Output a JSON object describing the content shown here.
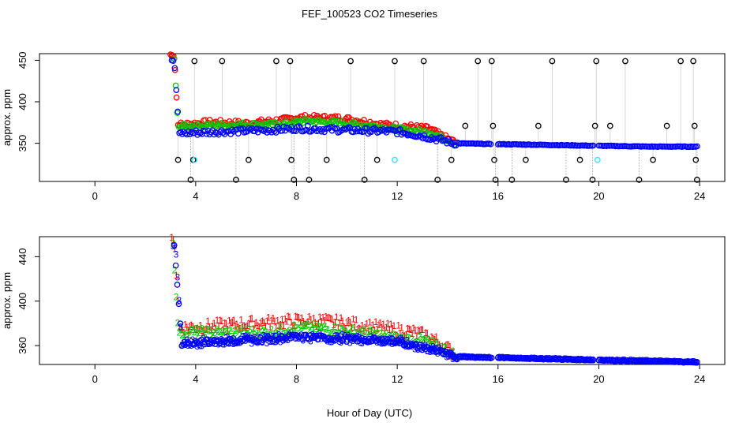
{
  "title": "FEF_100523  CO2 Timeseries",
  "xlabel": "Hour of Day (UTC)",
  "colors": {
    "black": "#000000",
    "red": "#ff0000",
    "green": "#00cc00",
    "blue": "#0000ff",
    "cyan": "#00ffff",
    "leader": "#9a9a9a"
  },
  "chart_data": [
    {
      "type": "scatter",
      "panel": "top",
      "ylabel": "approx. ppm",
      "xlim": [
        -2.2,
        25
      ],
      "ylim": [
        304,
        458
      ],
      "xticks": [
        0,
        4,
        8,
        12,
        16,
        20,
        24
      ],
      "yticks": [
        350,
        400,
        450
      ],
      "series": [
        {
          "name": "black",
          "color": "#000000",
          "marker": "circle",
          "leaders": true,
          "points": [
            [
              3.05,
              455
            ],
            [
              3.3,
              330
            ],
            [
              3.8,
              306
            ],
            [
              3.9,
              330
            ],
            [
              3.95,
              449
            ],
            [
              5.05,
              449
            ],
            [
              5.6,
              306
            ],
            [
              6.1,
              330
            ],
            [
              7.2,
              449
            ],
            [
              7.75,
              449
            ],
            [
              7.8,
              330
            ],
            [
              7.9,
              306
            ],
            [
              8.5,
              306
            ],
            [
              9.2,
              330
            ],
            [
              10.15,
              449
            ],
            [
              10.7,
              306
            ],
            [
              11.2,
              330
            ],
            [
              11.9,
              449
            ],
            [
              13.05,
              449
            ],
            [
              13.6,
              306
            ],
            [
              14.15,
              330
            ],
            [
              14.7,
              371
            ],
            [
              15.2,
              449
            ],
            [
              15.75,
              449
            ],
            [
              15.8,
              371
            ],
            [
              15.85,
              330
            ],
            [
              15.9,
              306
            ],
            [
              16.55,
              306
            ],
            [
              17.1,
              330
            ],
            [
              17.6,
              371
            ],
            [
              18.15,
              449
            ],
            [
              18.7,
              306
            ],
            [
              19.25,
              330
            ],
            [
              19.75,
              306
            ],
            [
              19.85,
              371
            ],
            [
              19.9,
              449
            ],
            [
              20.45,
              371
            ],
            [
              21.05,
              449
            ],
            [
              21.6,
              306
            ],
            [
              22.15,
              330
            ],
            [
              22.7,
              371
            ],
            [
              23.25,
              449
            ],
            [
              23.75,
              449
            ],
            [
              23.8,
              371
            ],
            [
              23.85,
              330
            ],
            [
              23.9,
              306
            ]
          ]
        },
        {
          "name": "red",
          "color": "#ff0000",
          "marker": "circle",
          "segments": [
            [
              3.0,
              14.3
            ]
          ],
          "knots": [
            [
              3.0,
              457
            ],
            [
              3.15,
              455
            ],
            [
              3.3,
              372
            ],
            [
              4.5,
              375
            ],
            [
              6,
              374
            ],
            [
              7.5,
              378
            ],
            [
              8,
              381
            ],
            [
              9.8,
              380
            ],
            [
              10.5,
              377
            ],
            [
              11.5,
              372
            ],
            [
              12.5,
              370
            ],
            [
              13.3,
              367
            ],
            [
              13.8,
              358
            ],
            [
              14.3,
              351
            ]
          ],
          "amp": 3.5
        },
        {
          "name": "green",
          "color": "#00cc00",
          "marker": "circle",
          "segments": [
            [
              3.15,
              14.3
            ]
          ],
          "knots": [
            [
              3.15,
              452
            ],
            [
              3.3,
              370
            ],
            [
              5,
              372
            ],
            [
              7.5,
              373
            ],
            [
              8.3,
              377
            ],
            [
              9.8,
              374
            ],
            [
              11,
              371
            ],
            [
              12.5,
              365
            ],
            [
              13.3,
              363
            ],
            [
              13.8,
              357
            ],
            [
              14.3,
              350
            ]
          ],
          "amp": 3
        },
        {
          "name": "blue",
          "color": "#0000ff",
          "marker": "circle",
          "segments": [
            [
              3.05,
              15.75
            ],
            [
              16.0,
              19.8
            ],
            [
              20.0,
              23.95
            ]
          ],
          "knots": [
            [
              3.05,
              450
            ],
            [
              3.15,
              449
            ],
            [
              3.35,
              362
            ],
            [
              5,
              364
            ],
            [
              7,
              366
            ],
            [
              8,
              368
            ],
            [
              9,
              367
            ],
            [
              10,
              366
            ],
            [
              11,
              365
            ],
            [
              12,
              364
            ],
            [
              12.6,
              361
            ],
            [
              13.3,
              357
            ],
            [
              14.3,
              350
            ],
            [
              15.8,
              349
            ],
            [
              16,
              349
            ],
            [
              18,
              348
            ],
            [
              19.8,
              347
            ],
            [
              20,
              347
            ],
            [
              22,
              346
            ],
            [
              24,
              346
            ]
          ],
          "amp": 3.5
        },
        {
          "name": "cyan",
          "color": "#00ffff",
          "marker": "circle",
          "points": [
            [
              3.95,
              330
            ],
            [
              11.9,
              330
            ],
            [
              19.95,
              330
            ]
          ]
        }
      ]
    },
    {
      "type": "scatter",
      "panel": "bottom",
      "ylabel": "approx. ppm",
      "xlim": [
        -2.2,
        25
      ],
      "ylim": [
        343,
        458
      ],
      "xticks": [
        0,
        4,
        8,
        12,
        16,
        20,
        24
      ],
      "yticks": [
        360,
        400,
        440
      ],
      "series": [
        {
          "name": "1",
          "color": "#ff0000",
          "marker": "1",
          "segments": [
            [
              3.05,
              14.3
            ]
          ],
          "knots": [
            [
              3.05,
              457
            ],
            [
              3.15,
              455
            ],
            [
              3.35,
              376
            ],
            [
              5,
              378
            ],
            [
              7,
              381
            ],
            [
              8,
              382
            ],
            [
              9,
              382
            ],
            [
              10,
              380
            ],
            [
              11,
              377
            ],
            [
              12,
              374
            ],
            [
              12.6,
              372
            ],
            [
              13.3,
              368
            ],
            [
              13.8,
              360
            ],
            [
              14.3,
              353
            ]
          ],
          "amp": 5
        },
        {
          "name": "2",
          "color": "#00cc00",
          "marker": "2",
          "segments": [
            [
              3.1,
              14.3
            ]
          ],
          "knots": [
            [
              3.1,
              452
            ],
            [
              3.3,
              372
            ],
            [
              5,
              371
            ],
            [
              7,
              372
            ],
            [
              8,
              376
            ],
            [
              9,
              375
            ],
            [
              10,
              373
            ],
            [
              11,
              370
            ],
            [
              12,
              366
            ],
            [
              13,
              364
            ],
            [
              13.8,
              357
            ],
            [
              14.3,
              351
            ]
          ],
          "amp": 4
        },
        {
          "name": "3",
          "color": "#0000ff",
          "marker": "3",
          "segments": [
            [
              3.1,
              15.75
            ],
            [
              16.0,
              19.8
            ],
            [
              20.0,
              23.95
            ]
          ],
          "knots": [
            [
              3.1,
              450
            ],
            [
              3.2,
              449
            ],
            [
              3.45,
              362
            ],
            [
              5,
              364
            ],
            [
              7,
              366
            ],
            [
              8,
              368
            ],
            [
              9,
              367
            ],
            [
              10,
              366
            ],
            [
              11,
              365
            ],
            [
              12,
              364
            ],
            [
              12.6,
              360
            ],
            [
              13.3,
              357
            ],
            [
              14.3,
              350
            ],
            [
              15.8,
              349
            ],
            [
              16,
              349
            ],
            [
              18,
              348
            ],
            [
              19.8,
              347
            ],
            [
              20,
              347
            ],
            [
              22,
              346
            ],
            [
              24,
              345
            ]
          ],
          "amp": 3.5
        },
        {
          "name": "o",
          "color": "#0000ff",
          "marker": "circle",
          "segments": [
            [
              3.15,
              15.75
            ],
            [
              16.0,
              19.8
            ],
            [
              20.0,
              23.95
            ]
          ],
          "knots": [
            [
              3.15,
              450
            ],
            [
              3.45,
              362
            ],
            [
              5,
              364
            ],
            [
              7,
              366
            ],
            [
              8,
              368
            ],
            [
              9,
              367
            ],
            [
              10,
              366
            ],
            [
              11,
              365
            ],
            [
              12,
              364
            ],
            [
              12.6,
              360
            ],
            [
              13.3,
              357
            ],
            [
              14.3,
              350
            ],
            [
              15.8,
              349
            ],
            [
              16,
              349
            ],
            [
              18,
              348
            ],
            [
              19.8,
              347
            ],
            [
              20,
              347
            ],
            [
              22,
              346
            ],
            [
              24,
              345
            ]
          ],
          "amp": 2.5
        }
      ]
    }
  ]
}
